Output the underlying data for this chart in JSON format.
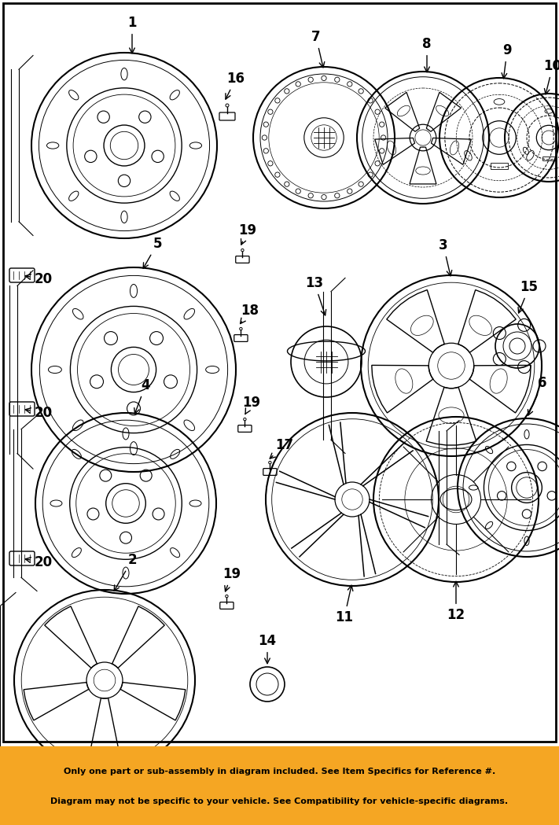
{
  "bg_color": "#ffffff",
  "fig_width": 7.11,
  "fig_height": 10.49,
  "footer_text_line1": "Only one part or sub-assembly in diagram included. See Item Specifics for Reference #.",
  "footer_text_line2": "Diagram may not be specific to your vehicle. See Compatibility for vehicle-specific diagrams.",
  "footer_bg": "#f5a623",
  "footer_text_color": "#000000"
}
